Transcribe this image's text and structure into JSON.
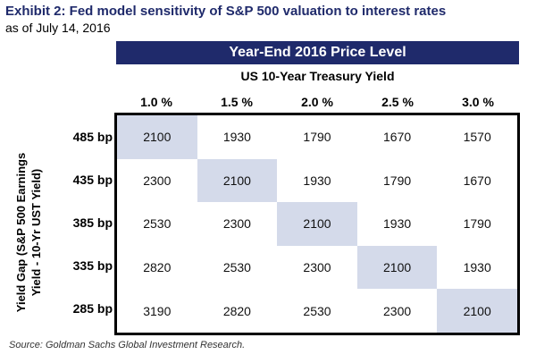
{
  "title": "Exhibit 2: Fed model sensitivity of S&P 500 valuation to interest rates",
  "subtitle": "as of July 14, 2016",
  "header_band": "Year-End 2016 Price Level",
  "column_axis_title": "US 10-Year Treasury Yield",
  "row_axis_title_line1": "Yield Gap (S&P 500 Earnings",
  "row_axis_title_line2": "Yield - 10-Yr UST Yield)",
  "columns": [
    "1.0 %",
    "1.5 %",
    "2.0 %",
    "2.5 %",
    "3.0 %"
  ],
  "rows": [
    "485 bp",
    "435 bp",
    "385 bp",
    "335 bp",
    "285 bp"
  ],
  "table": [
    [
      "2100",
      "1930",
      "1790",
      "1670",
      "1570"
    ],
    [
      "2300",
      "2100",
      "1930",
      "1790",
      "1670"
    ],
    [
      "2530",
      "2300",
      "2100",
      "1930",
      "1790"
    ],
    [
      "2820",
      "2530",
      "2300",
      "2100",
      "1930"
    ],
    [
      "3190",
      "2820",
      "2530",
      "2300",
      "2100"
    ]
  ],
  "highlight_color": "#d4daea",
  "header_color": "#1f2a6b",
  "source": "Source: Goldman Sachs Global Investment Research."
}
